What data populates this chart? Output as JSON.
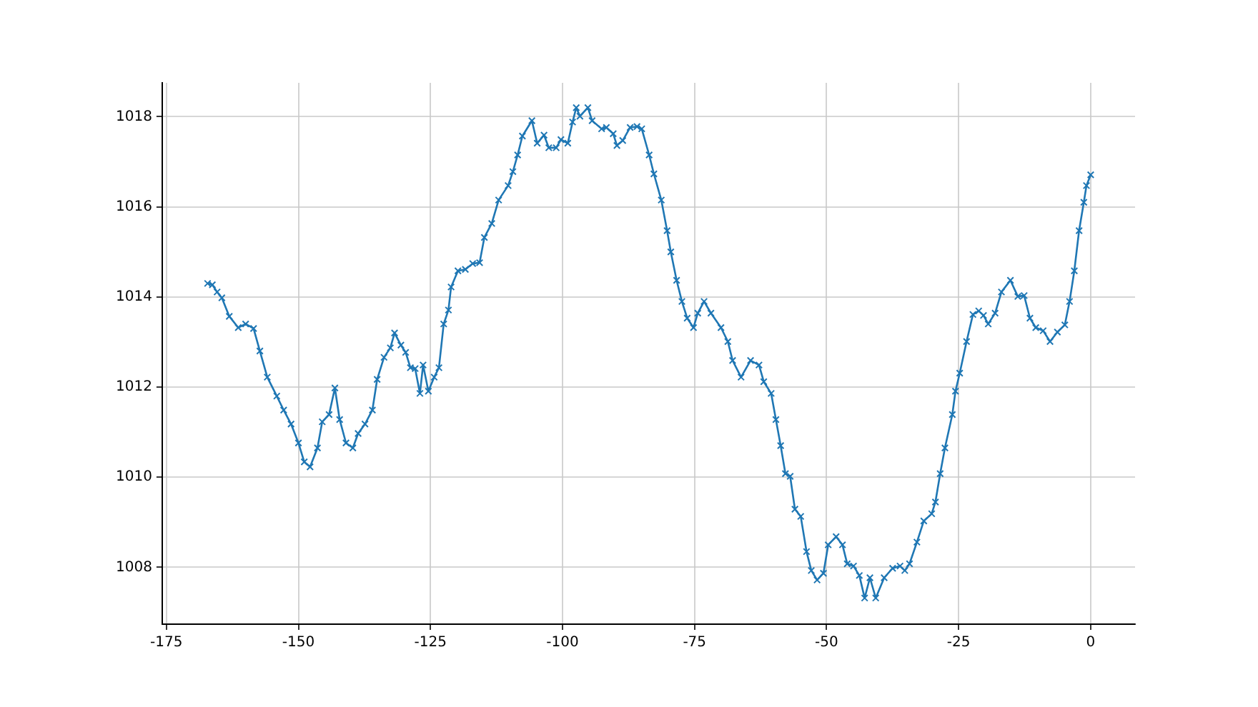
{
  "chart_data": {
    "type": "line",
    "marker": "cross",
    "line_style": "solid",
    "grid": true,
    "xlim": [
      -175.8,
      8.4
    ],
    "ylim": [
      1006.74,
      1018.75
    ],
    "xticks": [
      -175,
      -150,
      -125,
      -100,
      -75,
      -50,
      -25,
      0
    ],
    "yticks": [
      1008,
      1010,
      1012,
      1014,
      1016,
      1018
    ],
    "series": [
      {
        "color": "#1f77b4",
        "x": [
          -167.2,
          -166.3,
          -165.4,
          -164.5,
          -163.1,
          -161.4,
          -160.0,
          -158.5,
          -157.3,
          -155.9,
          -154.1,
          -152.8,
          -151.4,
          -150.0,
          -148.9,
          -147.8,
          -146.4,
          -145.5,
          -144.2,
          -143.1,
          -142.2,
          -141.0,
          -139.7,
          -138.7,
          -137.4,
          -136.0,
          -135.1,
          -133.8,
          -132.6,
          -131.8,
          -130.6,
          -129.7,
          -128.8,
          -127.9,
          -127.0,
          -126.4,
          -125.4,
          -124.3,
          -123.4,
          -122.5,
          -121.6,
          -121.1,
          -119.8,
          -118.4,
          -117.0,
          -115.7,
          -114.8,
          -113.4,
          -112.1,
          -110.3,
          -109.4,
          -108.5,
          -107.6,
          -105.8,
          -104.8,
          -103.5,
          -102.6,
          -101.2,
          -100.3,
          -99.0,
          -98.1,
          -97.4,
          -96.7,
          -95.2,
          -94.4,
          -92.6,
          -91.7,
          -90.4,
          -89.7,
          -88.6,
          -87.2,
          -85.9,
          -85.0,
          -83.6,
          -82.7,
          -81.3,
          -80.2,
          -79.5,
          -78.4,
          -77.4,
          -76.4,
          -75.2,
          -74.4,
          -73.2,
          -71.9,
          -70.0,
          -68.7,
          -67.8,
          -66.2,
          -64.4,
          -62.8,
          -61.9,
          -60.5,
          -59.6,
          -58.7,
          -57.8,
          -56.9,
          -56.0,
          -54.9,
          -53.8,
          -52.9,
          -51.8,
          -50.6,
          -49.7,
          -48.2,
          -47.0,
          -46.1,
          -44.9,
          -43.8,
          -42.8,
          -41.8,
          -40.7,
          -39.1,
          -37.5,
          -36.1,
          -35.2,
          -34.3,
          -32.9,
          -31.6,
          -30.1,
          -29.4,
          -28.5,
          -27.6,
          -26.2,
          -25.6,
          -24.8,
          -23.5,
          -22.3,
          -21.2,
          -20.3,
          -19.4,
          -18.1,
          -16.9,
          -15.2,
          -13.8,
          -12.6,
          -11.5,
          -10.4,
          -9.0,
          -7.7,
          -6.3,
          -4.9,
          -4.0,
          -3.1,
          -2.2,
          -1.3,
          -0.8,
          0.0
        ],
        "values": [
          1014.3,
          1014.27,
          1014.11,
          1013.98,
          1013.57,
          1013.32,
          1013.4,
          1013.3,
          1012.8,
          1012.22,
          1011.8,
          1011.49,
          1011.18,
          1010.76,
          1010.34,
          1010.23,
          1010.65,
          1011.23,
          1011.39,
          1011.98,
          1011.28,
          1010.76,
          1010.65,
          1010.97,
          1011.18,
          1011.49,
          1012.17,
          1012.66,
          1012.87,
          1013.2,
          1012.93,
          1012.77,
          1012.43,
          1012.41,
          1011.86,
          1012.49,
          1011.91,
          1012.22,
          1012.43,
          1013.4,
          1013.71,
          1014.22,
          1014.58,
          1014.61,
          1014.74,
          1014.76,
          1015.32,
          1015.63,
          1016.15,
          1016.47,
          1016.78,
          1017.15,
          1017.57,
          1017.91,
          1017.41,
          1017.59,
          1017.31,
          1017.31,
          1017.49,
          1017.41,
          1017.88,
          1018.2,
          1018.01,
          1018.2,
          1017.91,
          1017.73,
          1017.76,
          1017.62,
          1017.36,
          1017.47,
          1017.76,
          1017.78,
          1017.73,
          1017.15,
          1016.73,
          1016.15,
          1015.47,
          1015.0,
          1014.37,
          1013.9,
          1013.53,
          1013.32,
          1013.64,
          1013.9,
          1013.64,
          1013.32,
          1013.01,
          1012.59,
          1012.22,
          1012.59,
          1012.49,
          1012.12,
          1011.86,
          1011.28,
          1010.7,
          1010.08,
          1010.02,
          1009.29,
          1009.13,
          1008.35,
          1007.93,
          1007.72,
          1007.87,
          1008.5,
          1008.68,
          1008.5,
          1008.08,
          1008.03,
          1007.82,
          1007.32,
          1007.77,
          1007.32,
          1007.77,
          1007.98,
          1008.03,
          1007.93,
          1008.08,
          1008.56,
          1009.03,
          1009.19,
          1009.45,
          1010.08,
          1010.65,
          1011.39,
          1011.91,
          1012.31,
          1013.01,
          1013.61,
          1013.69,
          1013.59,
          1013.4,
          1013.64,
          1014.11,
          1014.37,
          1014.01,
          1014.03,
          1013.53,
          1013.32,
          1013.25,
          1013.01,
          1013.22,
          1013.38,
          1013.9,
          1014.58,
          1015.47,
          1016.1,
          1016.47,
          1016.71
        ]
      }
    ]
  }
}
